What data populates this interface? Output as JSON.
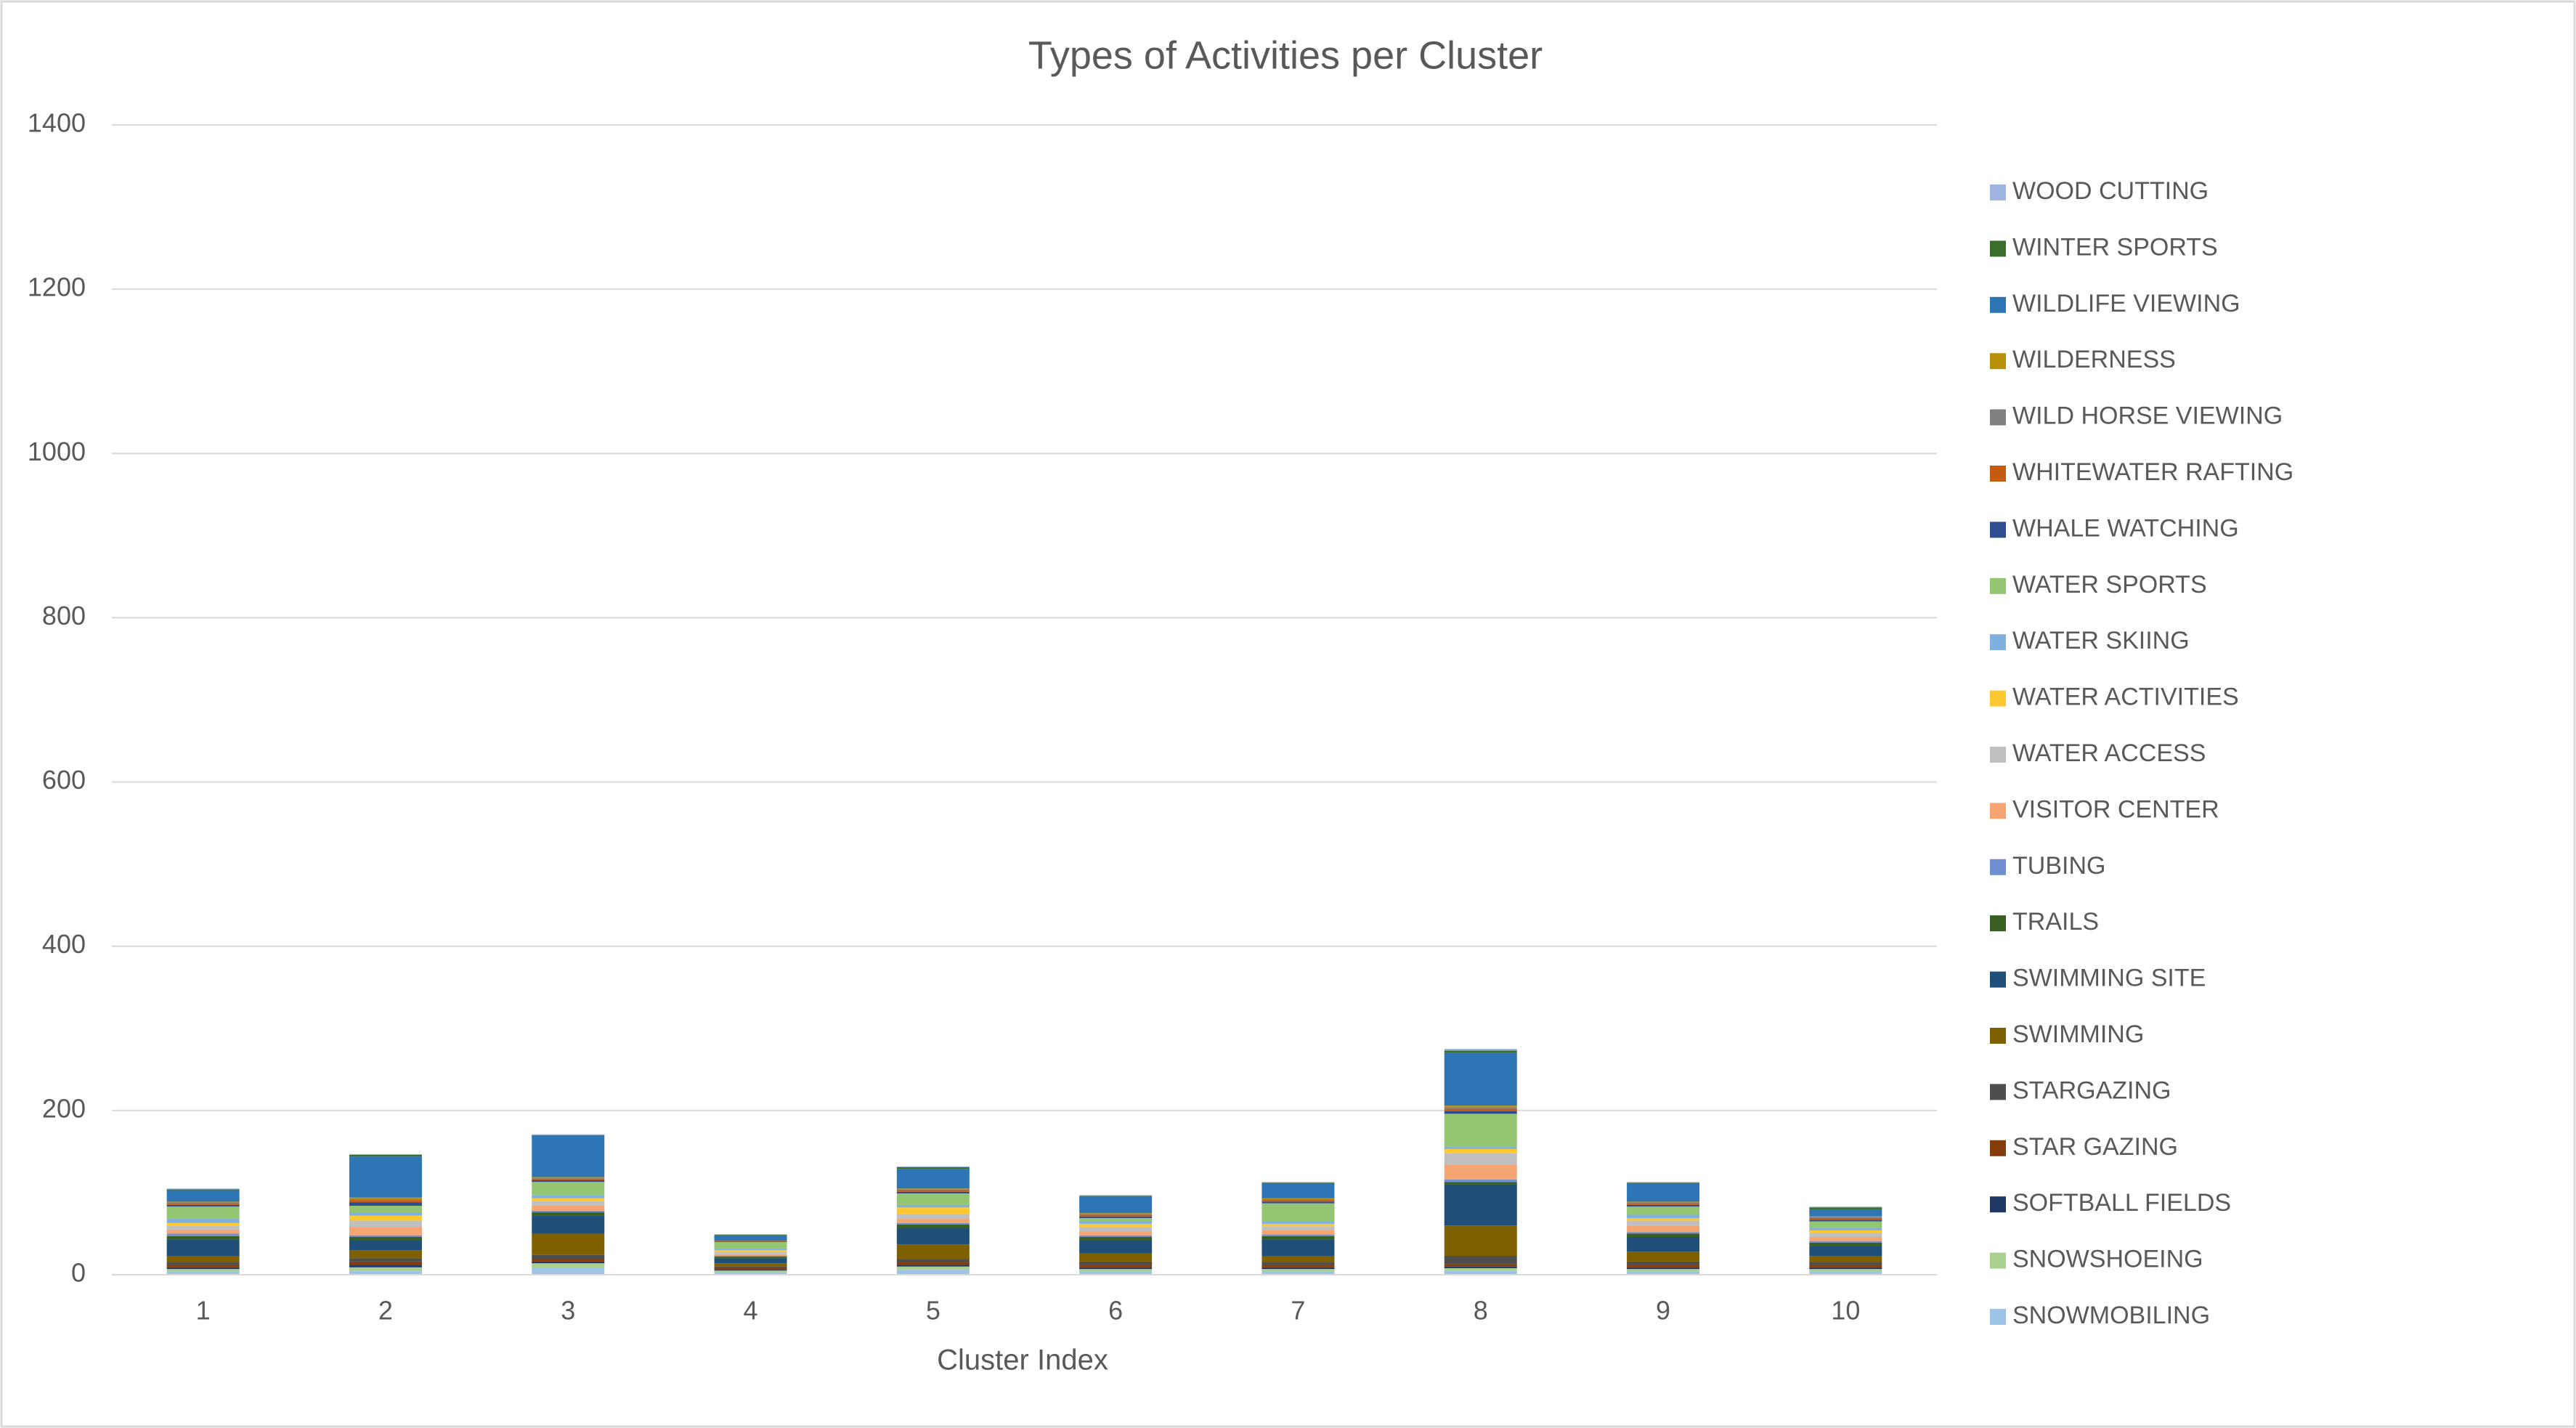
{
  "chart_data": {
    "type": "stacked_bar",
    "title": "Types of Activities per Cluster",
    "x_label": "Cluster Index",
    "categories": [
      "1",
      "2",
      "3",
      "4",
      "5",
      "6",
      "7",
      "8",
      "9",
      "10"
    ],
    "ylim": [
      0,
      1400
    ],
    "yticks": [
      0,
      200,
      400,
      600,
      800,
      1000,
      1200,
      1400
    ],
    "grid": true,
    "legend": "right",
    "series": [
      {
        "name": "WOOD CUTTING",
        "color": "#9db5e0",
        "values": [
          1,
          1,
          1,
          0,
          1,
          1,
          1,
          2,
          1,
          1
        ]
      },
      {
        "name": "WINTER SPORTS",
        "color": "#3c6e2b",
        "values": [
          1,
          2,
          1,
          1,
          2,
          1,
          1,
          3,
          1,
          3
        ]
      },
      {
        "name": "WILDLIFE VIEWING",
        "color": "#2e75b6",
        "values": [
          14,
          50,
          50,
          6,
          24,
          20,
          18,
          64,
          22,
          8
        ]
      },
      {
        "name": "WILDERNESS",
        "color": "#b8900a",
        "values": [
          1,
          2,
          1,
          0,
          1,
          1,
          1,
          2,
          1,
          1
        ]
      },
      {
        "name": "WILD HORSE VIEWING",
        "color": "#7f7f7f",
        "values": [
          1,
          1,
          1,
          0,
          1,
          1,
          1,
          2,
          1,
          1
        ]
      },
      {
        "name": "WHITEWATER RAFTING",
        "color": "#c55a11",
        "values": [
          2,
          3,
          2,
          1,
          2,
          2,
          2,
          3,
          2,
          2
        ]
      },
      {
        "name": "WHALE WATCHING",
        "color": "#2f4e8f",
        "values": [
          2,
          4,
          2,
          1,
          2,
          2,
          2,
          3,
          2,
          2
        ]
      },
      {
        "name": "WATER SPORTS",
        "color": "#93c572",
        "values": [
          15,
          8,
          16,
          8,
          14,
          4,
          22,
          40,
          10,
          8
        ]
      },
      {
        "name": "WATER SKIING",
        "color": "#7fb0e0",
        "values": [
          5,
          4,
          4,
          2,
          3,
          3,
          3,
          3,
          4,
          3
        ]
      },
      {
        "name": "WATER ACTIVITIES",
        "color": "#ffc82e",
        "values": [
          3,
          6,
          3,
          2,
          8,
          4,
          3,
          5,
          3,
          3
        ]
      },
      {
        "name": "WATER ACCESS",
        "color": "#bfbfbf",
        "values": [
          5,
          8,
          6,
          3,
          6,
          5,
          5,
          14,
          6,
          5
        ]
      },
      {
        "name": "VISITOR CENTER",
        "color": "#f4a571",
        "values": [
          5,
          10,
          6,
          2,
          5,
          5,
          5,
          18,
          8,
          5
        ]
      },
      {
        "name": "TUBING",
        "color": "#6f8fd0",
        "values": [
          3,
          2,
          2,
          1,
          2,
          2,
          2,
          3,
          2,
          2
        ]
      },
      {
        "name": "TRAILS",
        "color": "#375f22",
        "values": [
          4,
          4,
          4,
          2,
          4,
          4,
          4,
          3,
          4,
          4
        ]
      },
      {
        "name": "SWIMMING SITE",
        "color": "#1f4e79",
        "values": [
          20,
          12,
          22,
          6,
          20,
          16,
          20,
          50,
          18,
          12
        ]
      },
      {
        "name": "SWIMMING",
        "color": "#7f6000",
        "values": [
          8,
          10,
          26,
          4,
          18,
          10,
          8,
          37,
          12,
          8
        ]
      },
      {
        "name": "STARGAZING",
        "color": "#4d4d4d",
        "values": [
          3,
          4,
          5,
          2,
          4,
          4,
          3,
          10,
          4,
          3
        ]
      },
      {
        "name": "STAR GAZING",
        "color": "#843c0c",
        "values": [
          3,
          4,
          3,
          2,
          3,
          3,
          3,
          3,
          3,
          3
        ]
      },
      {
        "name": "SOFTBALL FIELDS",
        "color": "#1f3864",
        "values": [
          2,
          3,
          2,
          1,
          2,
          2,
          2,
          2,
          2,
          2
        ]
      },
      {
        "name": "SNOWSHOEING",
        "color": "#a9d18e",
        "values": [
          3,
          4,
          6,
          2,
          4,
          3,
          3,
          3,
          3,
          3
        ]
      },
      {
        "name": "SNOWMOBILING",
        "color": "#9dc3e6",
        "values": [
          4,
          5,
          8,
          3,
          6,
          4,
          4,
          5,
          4,
          4
        ]
      }
    ]
  }
}
